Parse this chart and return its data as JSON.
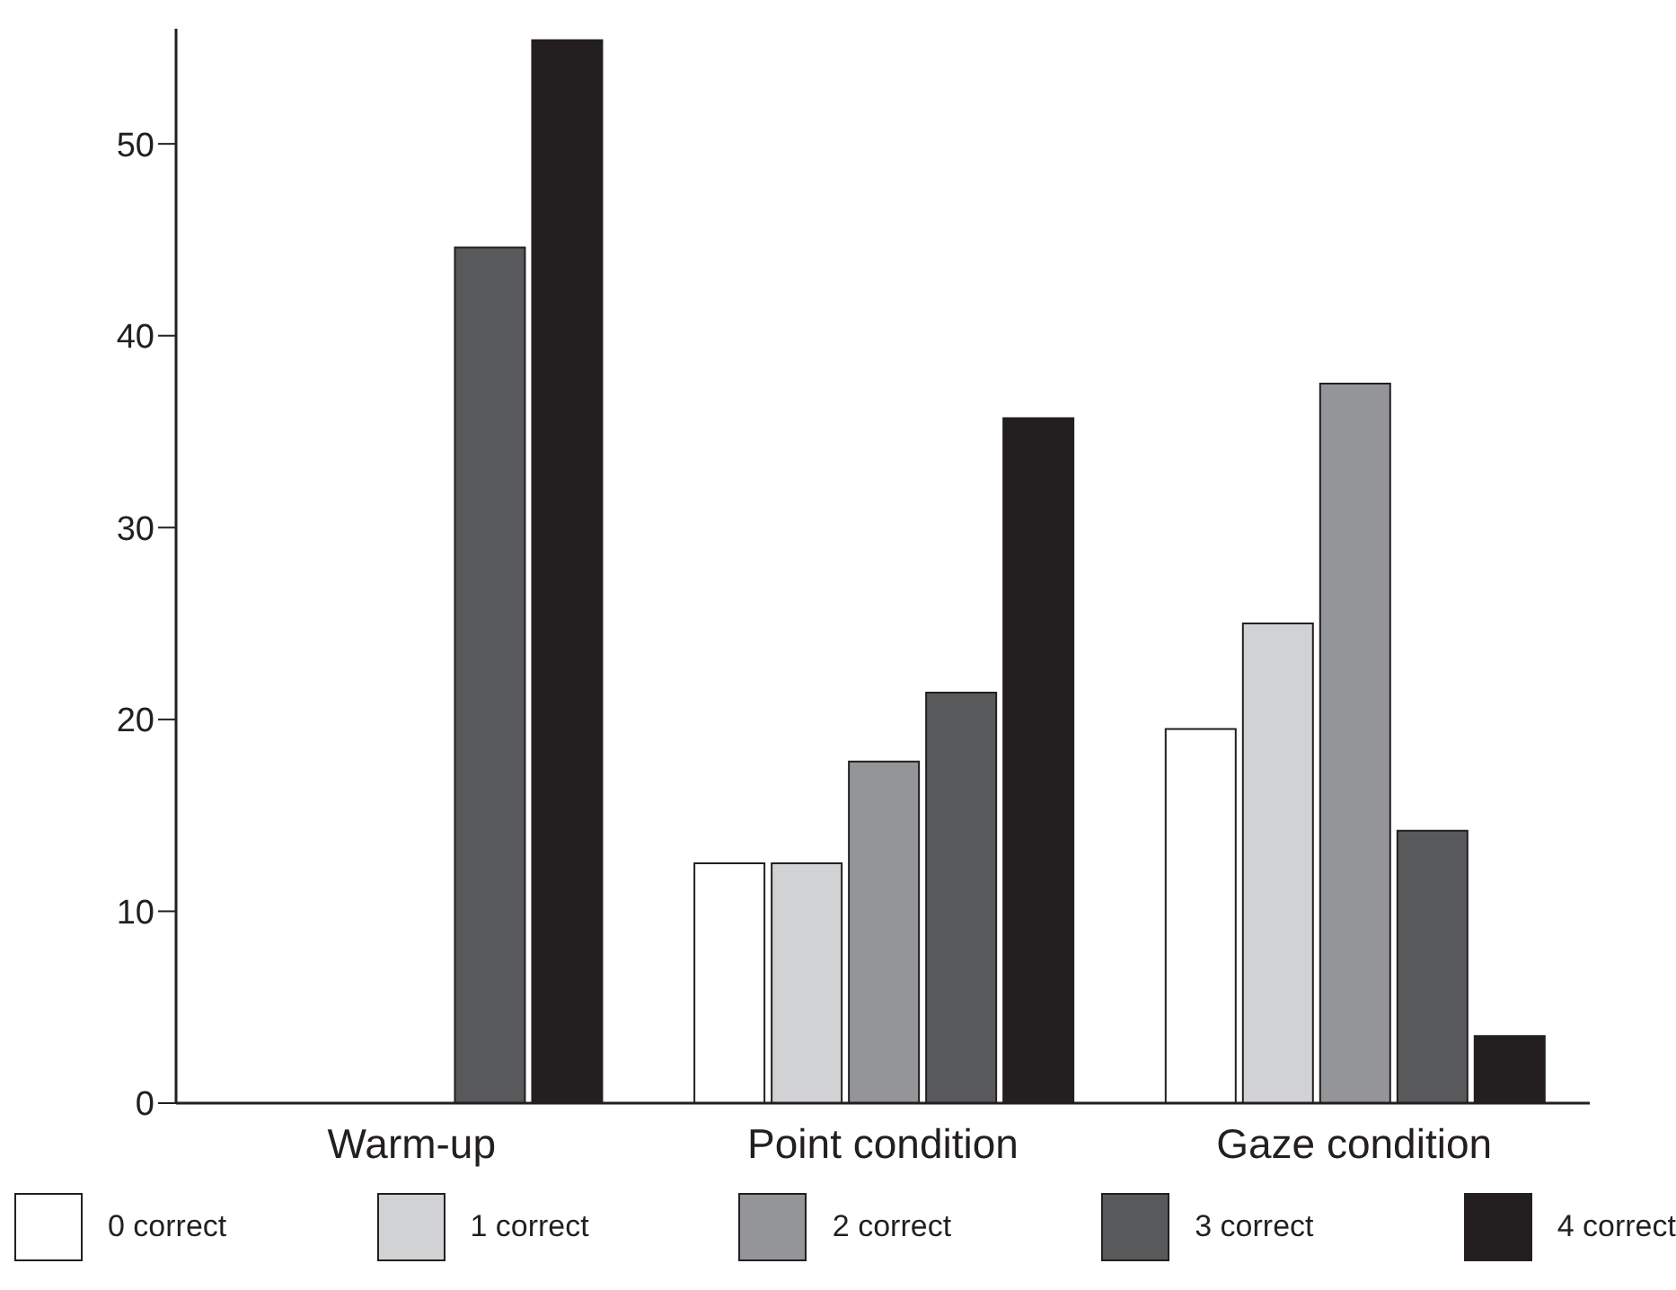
{
  "chart_data": {
    "type": "bar",
    "categories": [
      "Warm-up",
      "Point condition",
      "Gaze condition"
    ],
    "series": [
      {
        "name": "0 correct",
        "color": "#ffffff",
        "values": [
          0,
          12.5,
          19.5
        ]
      },
      {
        "name": "1 correct",
        "color": "#d1d2d4",
        "values": [
          0,
          12.5,
          25.0
        ]
      },
      {
        "name": "2 correct",
        "color": "#939598",
        "values": [
          0,
          17.8,
          37.5
        ]
      },
      {
        "name": "3 correct",
        "color": "#58595b",
        "values": [
          44.6,
          21.4,
          14.2
        ]
      },
      {
        "name": "4 correct",
        "color": "#231f20",
        "values": [
          55.4,
          35.7,
          3.5
        ]
      }
    ],
    "ylim": [
      0,
      56
    ],
    "yticks": [
      0,
      10,
      20,
      30,
      40,
      50
    ],
    "grid": false,
    "legend": "bottom"
  }
}
